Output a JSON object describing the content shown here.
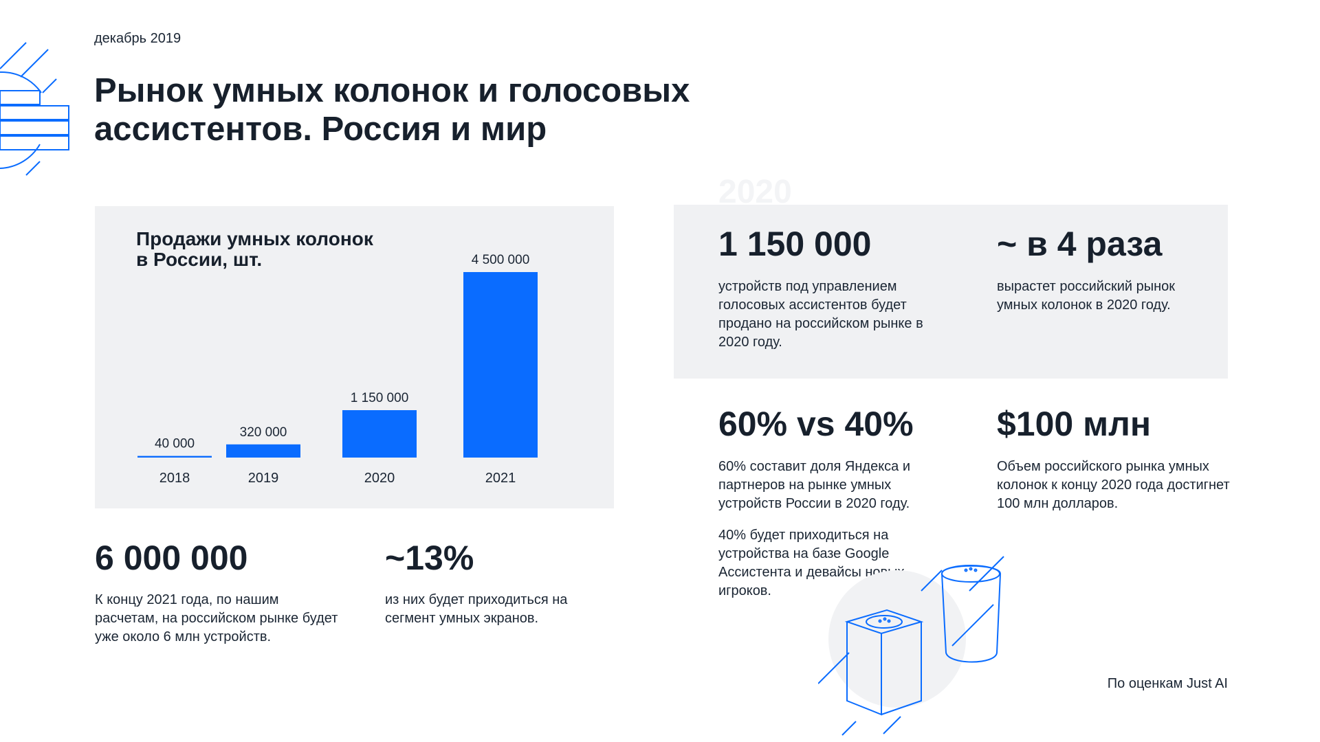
{
  "date": "декабрь 2019",
  "title_line1": "Рынок умных колонок и голосовых",
  "title_line2": "ассистентов. Россия и мир",
  "accent_color": "#0a6cff",
  "panel_color": "#f0f1f3",
  "ghost_year": "2020",
  "chart_data": {
    "type": "bar",
    "title_line1": "Продажи умных колонок",
    "title_line2": "в России, шт.",
    "categories": [
      "2018",
      "2019",
      "2020",
      "2021"
    ],
    "values": [
      40000,
      320000,
      1150000,
      4500000
    ],
    "value_labels": [
      "40 000",
      "320 000",
      "1 150 000",
      "4 500 000"
    ],
    "ylim": [
      0,
      4500000
    ],
    "grid": false,
    "legend": "none"
  },
  "stats": {
    "s1": {
      "value": "1 150 000",
      "desc": "устройств под управлением голосовых ассистентов будет продано на российском рынке в 2020 году."
    },
    "s2": {
      "value": "~ в 4 раза",
      "desc": "вырастет российский рынок умных колонок в 2020 году."
    },
    "s3": {
      "value": "60% vs 40%",
      "desc": "60% составит доля Яндекса и партнеров на рынке умных устройств России в 2020 году.",
      "desc2": "40% будет приходиться на устройства на базе Google Ассистента и девайсы новых игроков."
    },
    "s4": {
      "value": "$100 млн",
      "desc": "Объем российского рынка умных колонок к концу 2020 года достигнет 100 млн долларов."
    },
    "s5": {
      "value": "6 000 000",
      "desc": "К концу 2021 года, по нашим расчетам, на российском рынке будет уже около 6 млн устройств."
    },
    "s6": {
      "value": "~13%",
      "desc": "из них будет приходиться на сегмент умных экранов."
    }
  },
  "source": "По оценкам Just AI",
  "icons": {
    "left": "striped-globe-icon",
    "speakers": "smart-speakers-illustration"
  }
}
